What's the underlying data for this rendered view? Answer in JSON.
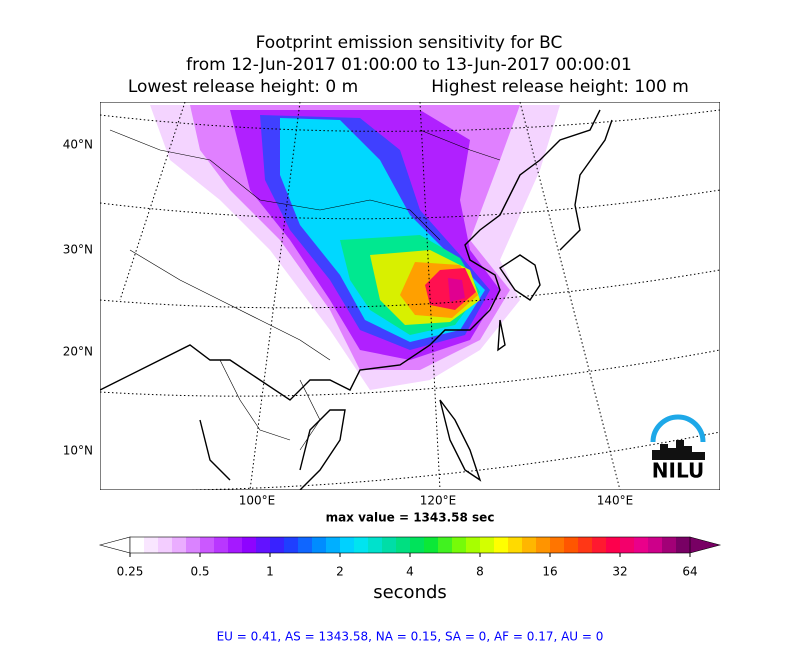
{
  "title": {
    "line1": "Footprint emission sensitivity for BC",
    "line2": "from 12-Jun-2017 01:00:00 to 13-Jun-2017 00:00:01",
    "lowest": "Lowest release height: 0 m",
    "highest": "Highest release height: 100 m"
  },
  "map": {
    "lat_labels": [
      "40°N",
      "30°N",
      "20°N",
      "10°N"
    ],
    "lon_labels": [
      "100°E",
      "120°E",
      "140°E"
    ],
    "max_value": "max value = 1343.58 sec",
    "logo": "NILU"
  },
  "colorbar": {
    "ticks": [
      "0.25",
      "0.5",
      "1",
      "2",
      "4",
      "8",
      "16",
      "32",
      "64"
    ],
    "label": "seconds"
  },
  "footer": "EU = 0.41,  AS = 1343.58,  NA = 0.15,  SA = 0,  AF = 0.17,  AU = 0"
}
